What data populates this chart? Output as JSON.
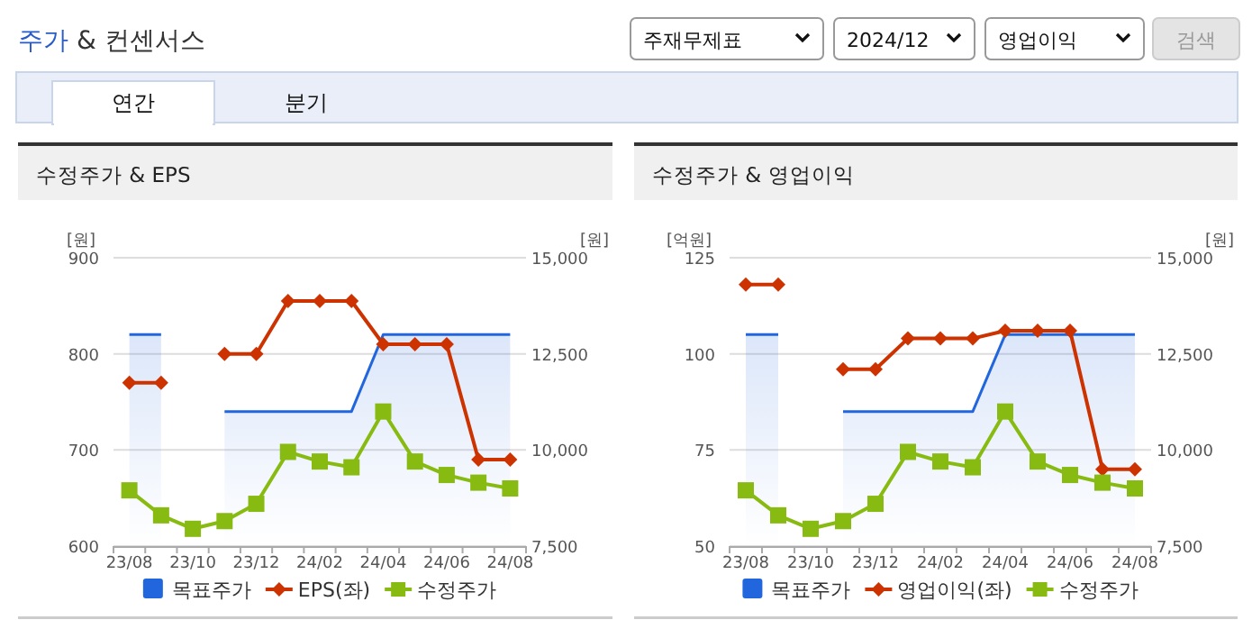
{
  "chart_data": [
    {
      "type": "other",
      "title": "주가 & 컨센서스",
      "annotations": [
        "주재무제표",
        "2024/12",
        "영업이익",
        "검색",
        "연간",
        "분기"
      ]
    },
    {
      "type": "line",
      "title": "수정주가 & EPS",
      "categories": [
        "23/08",
        null,
        "23/10",
        null,
        "23/12",
        null,
        "24/02",
        null,
        "24/04",
        null,
        "24/06",
        null,
        "24/08"
      ],
      "ylabel": "[원]",
      "y2label": "[원]",
      "ylim": [
        600,
        900
      ],
      "yticks": [
        600,
        700,
        800,
        900
      ],
      "y2lim": [
        7500,
        15000
      ],
      "y2ticks": [
        {
          "value": 7500,
          "label": "7,500"
        },
        {
          "value": 10000,
          "label": "10,000"
        },
        {
          "value": 12500,
          "label": "12,500"
        },
        {
          "value": 15000,
          "label": "15,000"
        }
      ],
      "grid": "y",
      "legend": "bottom",
      "series": [
        {
          "name": "목표주가",
          "type": "area",
          "axis": "y2",
          "color": "#2266dd",
          "values": [
            13000,
            13000,
            null,
            11000,
            11000,
            11000,
            11000,
            11000,
            13000,
            13000,
            13000,
            13000,
            13000
          ]
        },
        {
          "name": "EPS(좌)",
          "type": "line",
          "marker": "diamond",
          "color": "#cc3300",
          "values": [
            770,
            770,
            null,
            800,
            800,
            855,
            855,
            855,
            810,
            810,
            810,
            690,
            690
          ]
        },
        {
          "name": "수정주가",
          "type": "line",
          "marker": "square",
          "axis": "y2",
          "color": "#88bb11",
          "values": [
            8950,
            8300,
            7950,
            8150,
            8600,
            9950,
            9700,
            9550,
            11000,
            9700,
            9350,
            9150,
            9000
          ]
        }
      ]
    },
    {
      "type": "line",
      "title": "수정주가 & 영업이익",
      "categories": [
        "23/08",
        null,
        "23/10",
        null,
        "23/12",
        null,
        "24/02",
        null,
        "24/04",
        null,
        "24/06",
        null,
        "24/08"
      ],
      "ylabel": "[억원]",
      "y2label": "[원]",
      "ylim": [
        50,
        125
      ],
      "yticks": [
        50,
        75,
        100,
        125
      ],
      "y2lim": [
        7500,
        15000
      ],
      "y2ticks": [
        {
          "value": 7500,
          "label": "7,500"
        },
        {
          "value": 10000,
          "label": "10,000"
        },
        {
          "value": 12500,
          "label": "12,500"
        },
        {
          "value": 15000,
          "label": "15,000"
        }
      ],
      "grid": "y",
      "legend": "bottom",
      "series": [
        {
          "name": "목표주가",
          "type": "area",
          "axis": "y2",
          "color": "#2266dd",
          "values": [
            13000,
            13000,
            null,
            11000,
            11000,
            11000,
            11000,
            11000,
            13000,
            13000,
            13000,
            13000,
            13000
          ]
        },
        {
          "name": "영업이익(좌)",
          "type": "line",
          "marker": "diamond",
          "color": "#cc3300",
          "values": [
            118,
            118,
            null,
            96,
            96,
            104,
            104,
            104,
            106,
            106,
            106,
            70,
            70
          ]
        },
        {
          "name": "수정주가",
          "type": "line",
          "marker": "square",
          "axis": "y2",
          "color": "#88bb11",
          "values": [
            8950,
            8300,
            7950,
            8150,
            8600,
            9950,
            9700,
            9550,
            11000,
            9700,
            9350,
            9150,
            9000
          ]
        }
      ]
    }
  ]
}
